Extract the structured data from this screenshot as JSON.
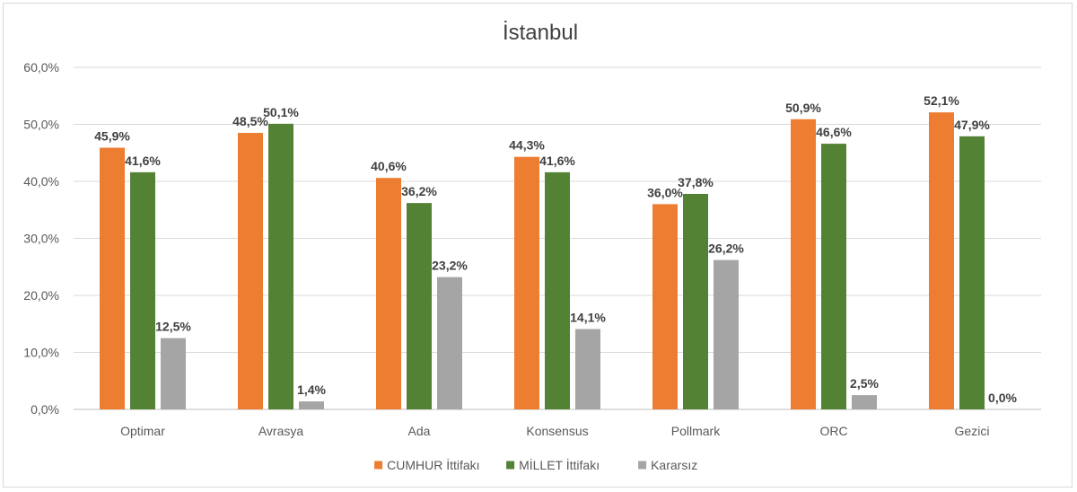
{
  "chart_data": {
    "type": "bar",
    "title": "İstanbul",
    "categories": [
      "Optimar",
      "Avrasya",
      "Ada",
      "Konsensus",
      "Pollmark",
      "ORC",
      "Gezici"
    ],
    "series": [
      {
        "name": "CUMHUR İttifakı",
        "color": "#ED7D31",
        "values": [
          45.9,
          48.5,
          40.6,
          44.3,
          36.0,
          50.9,
          52.1
        ],
        "labels": [
          "45,9%",
          "48,5%",
          "40,6%",
          "44,3%",
          "36,0%",
          "50,9%",
          "52,1%"
        ]
      },
      {
        "name": "MİLLET İttifakı",
        "color": "#548235",
        "values": [
          41.6,
          50.1,
          36.2,
          41.6,
          37.8,
          46.6,
          47.9
        ],
        "labels": [
          "41,6%",
          "50,1%",
          "36,2%",
          "41,6%",
          "37,8%",
          "46,6%",
          "47,9%"
        ]
      },
      {
        "name": "Kararsız",
        "color": "#A5A5A5",
        "values": [
          12.5,
          1.4,
          23.2,
          14.1,
          26.2,
          2.5,
          0.0
        ],
        "labels": [
          "12,5%",
          "1,4%",
          "23,2%",
          "14,1%",
          "26,2%",
          "2,5%",
          "0,0%"
        ]
      }
    ],
    "ylim": [
      0,
      60
    ],
    "yticks": [
      "0,0%",
      "10,0%",
      "20,0%",
      "30,0%",
      "40,0%",
      "50,0%",
      "60,0%"
    ],
    "grid": true,
    "legend_position": "bottom",
    "xlabel": "",
    "ylabel": ""
  }
}
